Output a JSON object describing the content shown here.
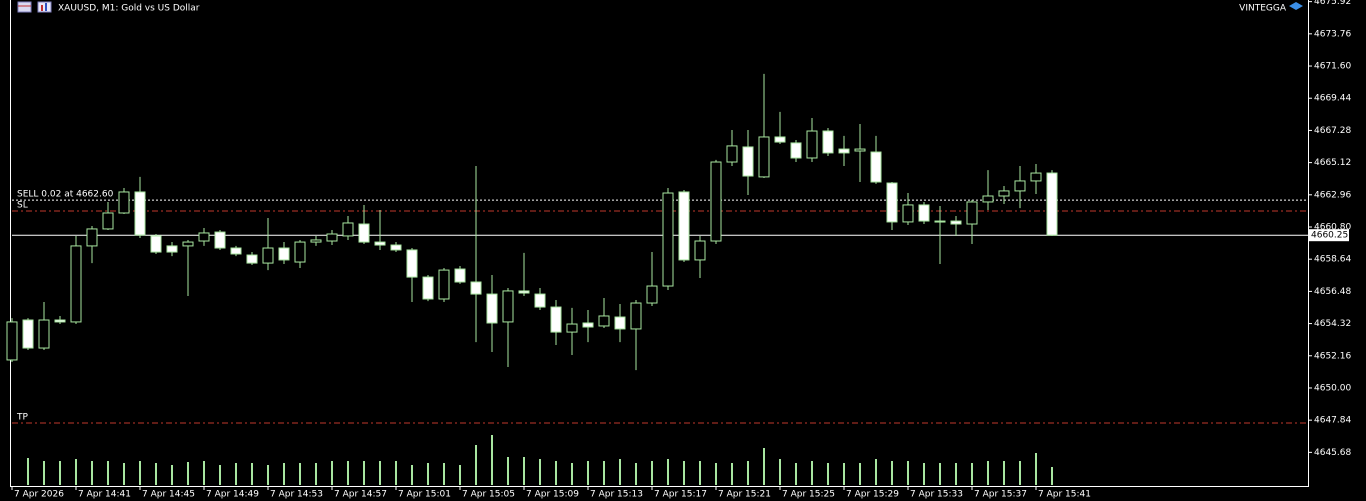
{
  "chart_data": {
    "type": "candlestick",
    "title": "XAUUSD, M1:  Gold vs US Dollar",
    "broker": "VINTEGGA",
    "categories": [
      "7 Apr 2026",
      null,
      null,
      null,
      "7 Apr 14:41",
      null,
      null,
      null,
      "7 Apr 14:45",
      null,
      null,
      null,
      "7 Apr 14:49",
      null,
      null,
      null,
      "7 Apr 14:53",
      null,
      null,
      null,
      "7 Apr 14:57",
      null,
      null,
      null,
      "7 Apr 15:01",
      null,
      null,
      null,
      "7 Apr 15:05",
      null,
      null,
      null,
      "7 Apr 15:09",
      null,
      null,
      null,
      "7 Apr 15:13",
      null,
      null,
      null,
      "7 Apr 15:17",
      null,
      null,
      null,
      "7 Apr 15:21",
      null,
      null,
      null,
      "7 Apr 15:25",
      null,
      null,
      null,
      "7 Apr 15:29",
      null,
      null,
      null,
      "7 Apr 15:33",
      null,
      null,
      null,
      "7 Apr 15:37",
      null,
      null,
      null,
      "7 Apr 15:41",
      null
    ],
    "open": [
      4651.88,
      4654.56,
      4652.68,
      4654.56,
      4654.43,
      4659.53,
      4660.67,
      4661.74,
      4663.15,
      4660.2,
      4659.53,
      4659.53,
      4659.86,
      4660.46,
      4659.39,
      4658.92,
      4658.38,
      4659.39,
      4658.45,
      4659.79,
      4659.86,
      4660.2,
      4661.0,
      4659.79,
      4659.59,
      4659.26,
      4657.44,
      4655.97,
      4657.98,
      4657.11,
      4656.3,
      4654.43,
      4656.51,
      4656.3,
      4655.43,
      4653.75,
      4654.36,
      4654.16,
      4654.76,
      4653.96,
      4655.7,
      4656.84,
      4663.15,
      4658.59,
      4659.86,
      4665.16,
      4666.17,
      4664.16,
      4666.84,
      4666.44,
      4665.43,
      4667.24,
      4666.03,
      4665.9,
      4665.83,
      4663.75,
      4661.14,
      4662.28,
      4661.2,
      4661.2,
      4661.0,
      4662.48,
      4662.88,
      4663.22,
      4663.89,
      4664.42
    ],
    "high": [
      4654.69,
      4654.69,
      4655.77,
      4654.83,
      4660.2,
      4660.87,
      4662.48,
      4663.42,
      4664.16,
      4660.33,
      4659.79,
      4659.93,
      4660.73,
      4660.6,
      4659.53,
      4659.12,
      4661.4,
      4659.79,
      4659.93,
      4660.2,
      4660.6,
      4661.54,
      4662.28,
      4661.94,
      4659.79,
      4659.39,
      4657.58,
      4658.05,
      4658.18,
      4664.89,
      4657.58,
      4656.71,
      4659.06,
      4656.71,
      4655.9,
      4655.37,
      4655.23,
      4656.04,
      4655.63,
      4655.9,
      4659.12,
      4663.42,
      4663.28,
      4660.2,
      4665.3,
      4667.31,
      4667.31,
      4671.07,
      4668.52,
      4666.64,
      4668.11,
      4667.44,
      4666.91,
      4667.71,
      4666.91,
      4663.82,
      4663.08,
      4662.48,
      4662.21,
      4661.54,
      4662.61,
      4664.62,
      4663.55,
      4664.89,
      4665.03,
      4664.62
    ],
    "low": [
      4651.74,
      4652.55,
      4652.55,
      4654.29,
      4654.29,
      4658.38,
      4660.6,
      4661.67,
      4660.06,
      4658.99,
      4658.85,
      4656.17,
      4659.53,
      4659.26,
      4658.85,
      4658.25,
      4657.91,
      4658.32,
      4658.05,
      4659.53,
      4659.59,
      4659.93,
      4659.66,
      4659.26,
      4659.12,
      4655.77,
      4655.83,
      4655.77,
      4656.98,
      4653.08,
      4652.41,
      4651.41,
      4656.17,
      4655.23,
      4652.88,
      4652.21,
      4653.08,
      4654.02,
      4653.08,
      4651.2,
      4655.5,
      4656.57,
      4658.45,
      4657.38,
      4659.66,
      4664.89,
      4662.95,
      4664.09,
      4666.37,
      4665.16,
      4665.16,
      4665.56,
      4664.89,
      4663.82,
      4663.69,
      4660.6,
      4660.93,
      4661.0,
      4658.32,
      4660.2,
      4659.66,
      4661.94,
      4662.34,
      4662.07,
      4663.01,
      4660.2
    ],
    "close": [
      4654.43,
      4652.68,
      4654.56,
      4654.43,
      4659.53,
      4660.67,
      4661.74,
      4663.15,
      4660.26,
      4659.12,
      4659.12,
      4659.79,
      4660.4,
      4659.39,
      4658.99,
      4658.38,
      4659.39,
      4658.59,
      4659.79,
      4659.93,
      4660.33,
      4661.07,
      4659.79,
      4659.59,
      4659.26,
      4657.44,
      4655.97,
      4657.91,
      4657.11,
      4656.3,
      4654.36,
      4656.51,
      4656.37,
      4655.43,
      4653.75,
      4654.29,
      4654.09,
      4654.83,
      4653.96,
      4655.7,
      4656.84,
      4663.08,
      4658.59,
      4659.86,
      4665.16,
      4666.24,
      4664.22,
      4666.84,
      4666.5,
      4665.43,
      4667.24,
      4665.77,
      4665.77,
      4666.03,
      4663.82,
      4661.14,
      4662.28,
      4661.2,
      4661.14,
      4661.0,
      4662.48,
      4662.88,
      4663.22,
      4663.89,
      4664.42,
      4660.25
    ],
    "volume": [
      20,
      27,
      24,
      24,
      26,
      24,
      24,
      22,
      24,
      22,
      20,
      23,
      24,
      20,
      22,
      22,
      20,
      22,
      22,
      22,
      24,
      24,
      24,
      24,
      24,
      20,
      22,
      22,
      20,
      40,
      50,
      28,
      28,
      26,
      24,
      22,
      24,
      24,
      26,
      22,
      24,
      26,
      24,
      24,
      22,
      22,
      24,
      37,
      26,
      22,
      24,
      22,
      22,
      22,
      26,
      24,
      24,
      22,
      22,
      22,
      22,
      24,
      24,
      24,
      32,
      18
    ],
    "ylim": [
      4643.49,
      4676.03
    ],
    "yticks": [
      4675.92,
      4673.76,
      {
        "value": 4671.6,
        "label": "4671.60"
      },
      4669.44,
      4667.28,
      4665.12,
      4662.96,
      {
        "value": 4660.8,
        "label": "4660.80"
      },
      4658.64,
      4656.48,
      4654.32,
      4652.16,
      {
        "value": 4650,
        "label": "4650.00"
      },
      4647.84,
      4645.68
    ],
    "bid": 4660.25,
    "levels": [
      {
        "label": "SELL 0.02 at 4662.60",
        "value": 4662.6,
        "color": "#ffffff",
        "dash": "2,2"
      },
      {
        "label": "SL",
        "value": 4661.87,
        "color": "#c0392b",
        "dash": "6,3,2,3"
      },
      {
        "label": "TP",
        "value": 4647.65,
        "color": "#c0392b",
        "dash": "6,3,2,3"
      }
    ],
    "up_color": "#a8e6a0",
    "down_color": "#ffffff",
    "volume_color": "#a8e6a0"
  }
}
